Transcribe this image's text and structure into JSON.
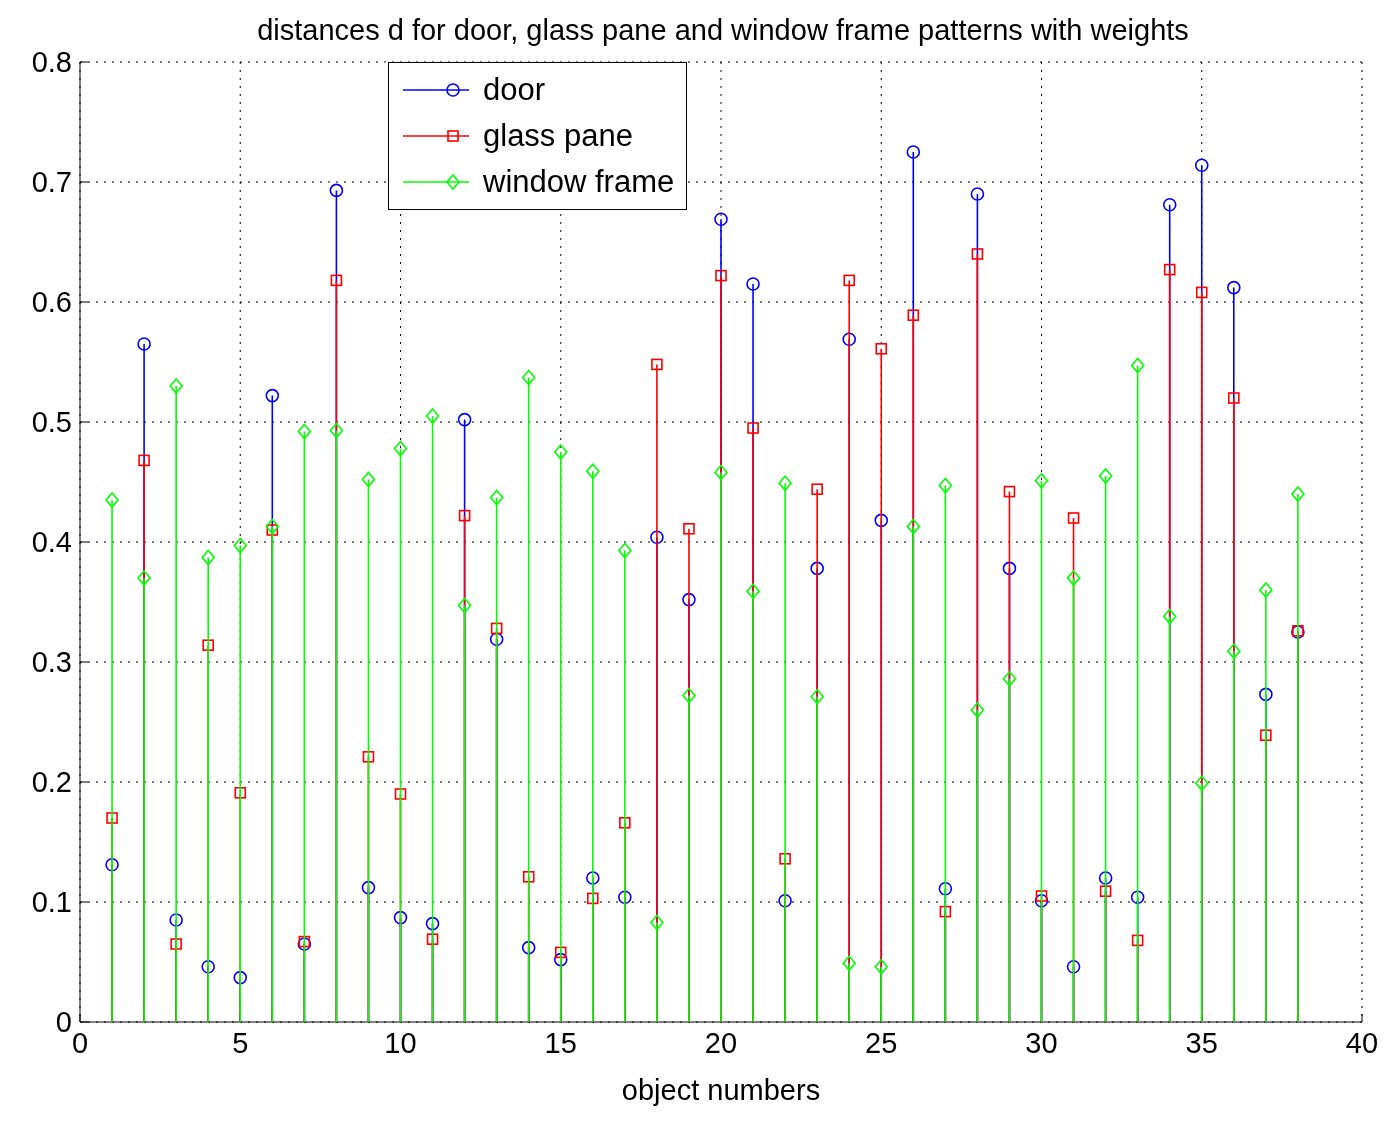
{
  "chart_data": {
    "type": "lollipop",
    "title": "distances d for  door, glass pane and window frame patterns with weights",
    "xlabel": "object numbers",
    "x": [
      1,
      2,
      3,
      4,
      5,
      6,
      7,
      8,
      9,
      10,
      11,
      12,
      13,
      14,
      15,
      16,
      17,
      18,
      19,
      20,
      21,
      22,
      23,
      24,
      25,
      26,
      27,
      28,
      29,
      30,
      31,
      32,
      33,
      34,
      35,
      36,
      37,
      38
    ],
    "series": [
      {
        "name": "door",
        "color": "#0000ff",
        "marker": "circle",
        "values": [
          0.131,
          0.565,
          0.085,
          0.046,
          0.037,
          0.522,
          0.065,
          0.693,
          0.112,
          0.087,
          0.082,
          0.502,
          0.319,
          0.062,
          0.052,
          0.12,
          0.104,
          0.404,
          0.352,
          0.669,
          0.615,
          0.101,
          0.378,
          0.569,
          0.418,
          0.725,
          0.111,
          0.69,
          0.378,
          0.101,
          0.046,
          0.12,
          0.104,
          0.681,
          0.714,
          0.612,
          0.273,
          0.325
        ]
      },
      {
        "name": "glass pane",
        "color": "#ff0000",
        "marker": "square",
        "values": [
          0.17,
          0.468,
          0.065,
          0.314,
          0.191,
          0.41,
          0.067,
          0.618,
          0.221,
          0.19,
          0.069,
          0.422,
          0.328,
          0.121,
          0.058,
          0.103,
          0.166,
          0.548,
          0.411,
          0.622,
          0.495,
          0.136,
          0.444,
          0.618,
          0.561,
          0.589,
          0.092,
          0.64,
          0.442,
          0.105,
          0.42,
          0.109,
          0.068,
          0.627,
          0.608,
          0.52,
          0.239,
          0.326
        ]
      },
      {
        "name": "window frame",
        "color": "#00ff00",
        "marker": "diamond",
        "values": [
          0.435,
          0.37,
          0.53,
          0.387,
          0.397,
          0.413,
          0.492,
          0.493,
          0.452,
          0.478,
          0.505,
          0.347,
          0.437,
          0.537,
          0.475,
          0.459,
          0.393,
          0.083,
          0.272,
          0.458,
          0.359,
          0.449,
          0.271,
          0.049,
          0.046,
          0.413,
          0.447,
          0.26,
          0.286,
          0.451,
          0.37,
          0.455,
          0.547,
          0.338,
          0.199,
          0.309,
          0.36,
          0.44
        ]
      }
    ],
    "xlim": [
      0,
      40
    ],
    "xticks": [
      0,
      5,
      10,
      15,
      20,
      25,
      30,
      35,
      40
    ],
    "ylim": [
      0,
      0.8
    ],
    "yticks": [
      0,
      0.1,
      0.2,
      0.3,
      0.4,
      0.5,
      0.6,
      0.7,
      0.8
    ],
    "grid": true,
    "legend": "top left"
  }
}
